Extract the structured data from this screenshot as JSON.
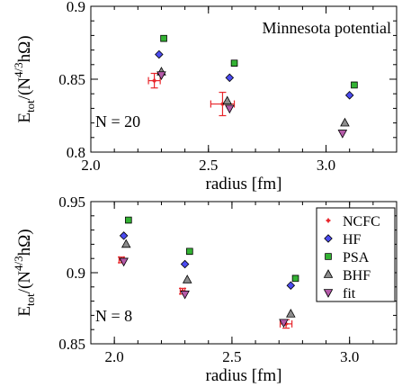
{
  "chart_data": [
    {
      "type": "scatter",
      "panel": "top",
      "xlabel": "radius [fm]",
      "ylabel": {
        "base": "E",
        "sub": "tot",
        "rest": "/(N",
        "sup": "4/3",
        "tail": "hΩ)"
      },
      "xlim": [
        2.0,
        3.3
      ],
      "ylim": [
        0.8,
        0.9
      ],
      "xticks": [
        2.0,
        2.5,
        3.0
      ],
      "xtick_labels": [
        "2.0",
        "2.5",
        "3.0"
      ],
      "yticks": [
        0.8,
        0.85,
        0.9
      ],
      "ytick_labels": [
        "0.8",
        "0.85",
        "0.9"
      ],
      "annotations": {
        "potential": "Minnesota potential",
        "n_label": "N = 20"
      },
      "series": [
        {
          "name": "NCFC",
          "color": "#e8262b",
          "marker": "plus",
          "points": [
            {
              "x": 2.27,
              "y": 0.849,
              "xerr": 0.025,
              "yerr": 0.005
            },
            {
              "x": 2.56,
              "y": 0.833,
              "xerr": 0.05,
              "yerr": 0.008
            }
          ]
        },
        {
          "name": "HF",
          "color": "#4b4bf0",
          "marker": "diamond",
          "points": [
            {
              "x": 2.29,
              "y": 0.867
            },
            {
              "x": 2.59,
              "y": 0.851
            },
            {
              "x": 3.1,
              "y": 0.839
            }
          ]
        },
        {
          "name": "PSA",
          "color": "#33b233",
          "marker": "square",
          "points": [
            {
              "x": 2.31,
              "y": 0.878
            },
            {
              "x": 2.61,
              "y": 0.861
            },
            {
              "x": 3.12,
              "y": 0.846
            }
          ]
        },
        {
          "name": "BHF",
          "color": "#8c8c8c",
          "marker": "triangle-up",
          "points": [
            {
              "x": 2.3,
              "y": 0.855
            },
            {
              "x": 2.58,
              "y": 0.835
            },
            {
              "x": 3.08,
              "y": 0.82
            }
          ]
        },
        {
          "name": "fit",
          "color": "#b45aa8",
          "marker": "triangle-down",
          "points": [
            {
              "x": 2.3,
              "y": 0.853
            },
            {
              "x": 2.59,
              "y": 0.83
            },
            {
              "x": 3.07,
              "y": 0.813
            }
          ]
        }
      ]
    },
    {
      "type": "scatter",
      "panel": "bottom",
      "xlabel": "radius [fm]",
      "ylabel": {
        "base": "E",
        "sub": "tot",
        "rest": "/(N",
        "sup": "4/3",
        "tail": "hΩ)"
      },
      "xlim": [
        1.9,
        3.2
      ],
      "ylim": [
        0.85,
        0.95
      ],
      "xticks": [
        2.0,
        2.5,
        3.0
      ],
      "xtick_labels": [
        "2.0",
        "2.5",
        "3.0"
      ],
      "yticks": [
        0.85,
        0.9,
        0.95
      ],
      "ytick_labels": [
        "0.85",
        "0.9",
        "0.95"
      ],
      "annotations": {
        "n_label": "N = 8"
      },
      "legend": {
        "position": "top-right",
        "entries": [
          "NCFC",
          "HF",
          "PSA",
          "BHF",
          "fit"
        ]
      },
      "series": [
        {
          "name": "NCFC",
          "color": "#e8262b",
          "marker": "plus",
          "points": [
            {
              "x": 2.03,
              "y": 0.909,
              "xerr": 0.01,
              "yerr": 0.002
            },
            {
              "x": 2.29,
              "y": 0.887,
              "xerr": 0.01,
              "yerr": 0.002
            },
            {
              "x": 2.73,
              "y": 0.864,
              "xerr": 0.025,
              "yerr": 0.003
            }
          ]
        },
        {
          "name": "HF",
          "color": "#4b4bf0",
          "marker": "diamond",
          "points": [
            {
              "x": 2.04,
              "y": 0.926
            },
            {
              "x": 2.3,
              "y": 0.906
            },
            {
              "x": 2.75,
              "y": 0.891
            }
          ]
        },
        {
          "name": "PSA",
          "color": "#33b233",
          "marker": "square",
          "points": [
            {
              "x": 2.06,
              "y": 0.937
            },
            {
              "x": 2.32,
              "y": 0.915
            },
            {
              "x": 2.77,
              "y": 0.896
            }
          ]
        },
        {
          "name": "BHF",
          "color": "#8c8c8c",
          "marker": "triangle-up",
          "points": [
            {
              "x": 2.05,
              "y": 0.92
            },
            {
              "x": 2.31,
              "y": 0.895
            },
            {
              "x": 2.75,
              "y": 0.871
            }
          ]
        },
        {
          "name": "fit",
          "color": "#b45aa8",
          "marker": "triangle-down",
          "points": [
            {
              "x": 2.04,
              "y": 0.908
            },
            {
              "x": 2.3,
              "y": 0.885
            },
            {
              "x": 2.72,
              "y": 0.865
            }
          ]
        }
      ]
    }
  ]
}
